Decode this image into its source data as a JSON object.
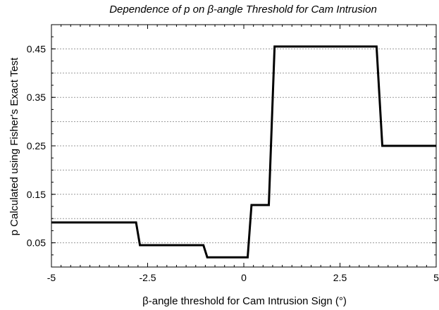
{
  "chart_data": {
    "type": "line",
    "title": "Dependence of p on β-angle Threshold for Cam Intrusion",
    "xlabel": "β-angle threshold for Cam Intrusion Sign (°)",
    "ylabel": "p Calculated using Fisher's Exact Test",
    "xlim": [
      -5,
      5
    ],
    "ylim": [
      0,
      0.5
    ],
    "xticks": [
      -5,
      -2.5,
      0,
      2.5,
      5
    ],
    "xtick_labels": [
      "-5",
      "-2.5",
      "0",
      "2.5",
      "5"
    ],
    "yticks": [
      0.05,
      0.15,
      0.25,
      0.35,
      0.45
    ],
    "ytick_labels": [
      "0.05",
      "0.15",
      "0.25",
      "0.35",
      "0.45"
    ],
    "grid": "horizontal dotted lines every 0.05",
    "line_color": "#000000",
    "series": [
      {
        "x": [
          -5,
          -2.8,
          -2.7,
          -1.05,
          -0.95,
          0.1,
          0.2,
          0.65,
          0.8,
          3.45,
          3.6,
          5
        ],
        "y": [
          0.092,
          0.092,
          0.045,
          0.045,
          0.02,
          0.02,
          0.128,
          0.128,
          0.455,
          0.455,
          0.25,
          0.25
        ]
      }
    ]
  }
}
